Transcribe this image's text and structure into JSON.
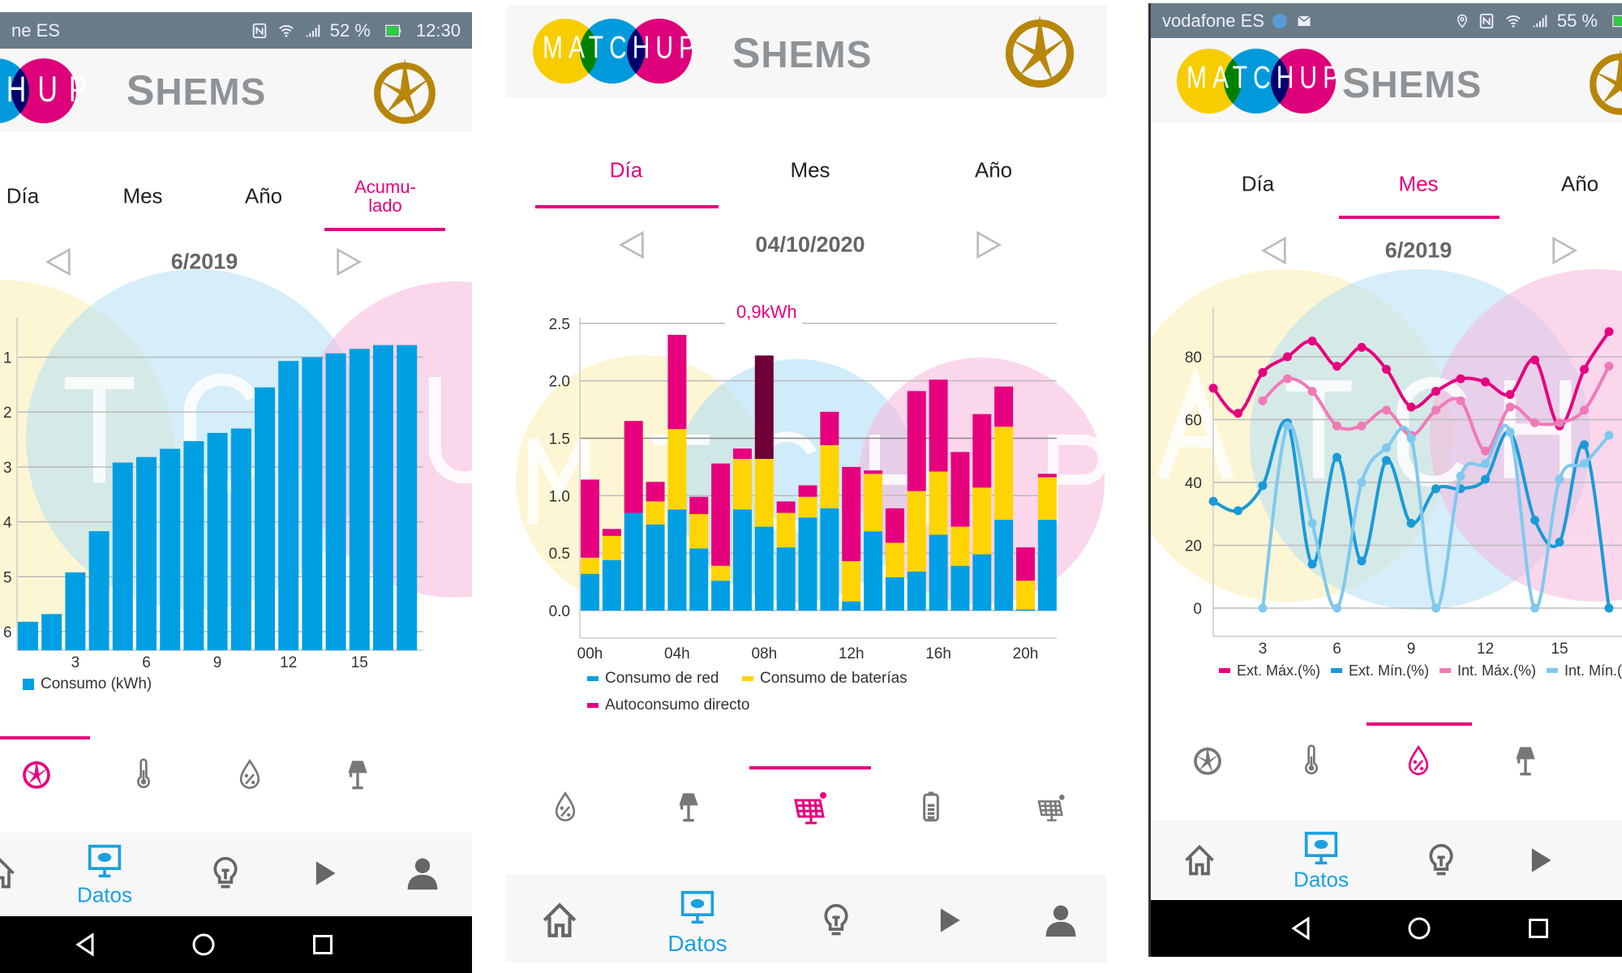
{
  "colors": {
    "blue": "#009fe3",
    "yellow": "#ffd400",
    "pink": "#e6007e",
    "dark": "#6d0036",
    "light_pink": "#f07ab8",
    "light_blue": "#7fc9ee",
    "accent_nav": "#1ba0e0"
  },
  "app": {
    "title": "SHEMS",
    "logo_text": "MATCHUP"
  },
  "panels": [
    {
      "status": {
        "carrier": "ne ES",
        "battery": "52 %",
        "time": "12:30"
      },
      "tabs": [
        "Día",
        "Mes",
        "Año",
        "Acumu-\nlado"
      ],
      "active_tab": 3,
      "date": "6/2019",
      "watermark": [
        "T",
        "C",
        "U"
      ],
      "categories": [
        "emblem",
        "thermometer",
        "humidity",
        "lamp"
      ],
      "active_category": 0,
      "nav": {
        "items": [
          "home",
          "data",
          "bulb",
          "play",
          "user"
        ],
        "active_label": "Datos"
      }
    },
    {
      "tabs": [
        "Día",
        "Mes",
        "Año"
      ],
      "active_tab": 0,
      "date": "04/10/2020",
      "watermark": [
        "M",
        "T",
        "C",
        "H",
        "P"
      ],
      "tooltip": "0,9kWh",
      "categories": [
        "humidity",
        "lamp",
        "solar",
        "battery",
        "solar-small"
      ],
      "active_category": 2,
      "nav": {
        "items": [
          "home",
          "data",
          "bulb",
          "play",
          "user"
        ],
        "active_label": "Datos"
      }
    },
    {
      "status": {
        "carrier": "vodafone ES",
        "battery": "55 %"
      },
      "tabs": [
        "Día",
        "Mes",
        "Año"
      ],
      "active_tab": 1,
      "date": "6/2019",
      "watermark": [
        "A",
        "T",
        "C",
        "H"
      ],
      "categories": [
        "emblem",
        "thermometer",
        "humidity",
        "lamp"
      ],
      "active_category": 2,
      "nav": {
        "items": [
          "home",
          "data",
          "bulb",
          "play"
        ],
        "active_label": "Datos"
      }
    }
  ],
  "chart_data": [
    {
      "type": "bar",
      "title": "",
      "xlabel": "",
      "ylabel": "",
      "x": [
        1,
        2,
        3,
        4,
        5,
        6,
        7,
        8,
        9,
        10,
        11,
        12,
        13,
        14,
        15,
        16,
        17
      ],
      "xticks": [
        "3",
        "6",
        "9",
        "12",
        "15"
      ],
      "yticks": [
        {
          "label": "6",
          "value": 0.34
        },
        {
          "label": "5",
          "value": 1.34
        },
        {
          "label": "4",
          "value": 2.34
        },
        {
          "label": "3",
          "value": 3.34
        },
        {
          "label": "2",
          "value": 4.34
        },
        {
          "label": "1",
          "value": 5.34
        }
      ],
      "values": [
        0.52,
        0.66,
        1.42,
        2.17,
        3.42,
        3.52,
        3.67,
        3.81,
        3.96,
        4.04,
        4.79,
        5.27,
        5.34,
        5.41,
        5.49,
        5.56,
        5.56
      ],
      "legend": [
        {
          "name": "Consumo (kWh)",
          "color": "#009fe3"
        }
      ],
      "grid": true
    },
    {
      "type": "bar",
      "stacked": true,
      "title": "",
      "ylim": [
        -0.24,
        2.6
      ],
      "categories": [
        "00h",
        "01h",
        "02h",
        "03h",
        "04h",
        "05h",
        "06h",
        "07h",
        "08h",
        "09h",
        "10h",
        "11h",
        "12h",
        "13h",
        "14h",
        "15h",
        "16h",
        "17h",
        "18h",
        "19h",
        "20h",
        "21h"
      ],
      "xticks": [
        "00h",
        "04h",
        "08h",
        "12h",
        "16h",
        "20h"
      ],
      "yticks": [
        "0.0",
        "0.5",
        "1.0",
        "1.5",
        "2.0",
        "2.5"
      ],
      "highlighted_index": 8,
      "annotation": "0,9kWh",
      "series": [
        {
          "name": "Consumo de red",
          "color": "#009fe3",
          "values": [
            0.32,
            0.44,
            0.85,
            0.75,
            0.88,
            0.54,
            0.26,
            0.88,
            0.73,
            0.55,
            0.81,
            0.89,
            0.08,
            0.69,
            0.29,
            0.34,
            0.66,
            0.39,
            0.49,
            0.79,
            0.01,
            0.79
          ]
        },
        {
          "name": "Consumo de baterías",
          "color": "#ffd400",
          "values": [
            0.14,
            0.21,
            0.0,
            0.2,
            0.7,
            0.3,
            0.13,
            0.44,
            0.59,
            0.3,
            0.18,
            0.55,
            0.35,
            0.5,
            0.3,
            0.7,
            0.55,
            0.34,
            0.58,
            0.81,
            0.25,
            0.37
          ]
        },
        {
          "name": "Autoconsumo directo",
          "color": "#e6007e",
          "values": [
            0.68,
            0.06,
            0.8,
            0.17,
            0.82,
            0.15,
            0.89,
            0.09,
            0.9,
            0.1,
            0.1,
            0.29,
            0.82,
            0.03,
            0.3,
            0.87,
            0.8,
            0.65,
            0.64,
            0.35,
            0.29,
            0.03
          ]
        }
      ],
      "grid": true
    },
    {
      "type": "line",
      "title": "",
      "ylim": [
        -9,
        93
      ],
      "x": [
        1,
        2,
        3,
        4,
        5,
        6,
        7,
        8,
        9,
        10,
        11,
        12,
        13,
        14,
        15,
        16,
        17
      ],
      "xticks": [
        "3",
        "6",
        "9",
        "12",
        "15"
      ],
      "yticks": [
        "0",
        "20",
        "40",
        "60",
        "80"
      ],
      "series": [
        {
          "name": "Ext. Máx.(%)",
          "color": "#e6007e",
          "values": [
            70,
            62,
            75,
            80,
            85,
            77,
            83,
            76,
            64,
            69,
            73,
            72,
            68,
            79,
            58,
            76,
            88
          ]
        },
        {
          "name": "Ext. Mín.(%)",
          "color": "#1a9ad8",
          "values": [
            34,
            31,
            39,
            59,
            14,
            48,
            15,
            47,
            27,
            38,
            38,
            41,
            56,
            28,
            21,
            52,
            0
          ]
        },
        {
          "name": "Int. Máx.(%)",
          "color": "#f07ab8",
          "values": [
            null,
            null,
            66,
            73,
            69,
            58,
            58,
            63,
            55,
            63,
            66,
            50,
            64,
            59,
            59,
            63,
            77
          ]
        },
        {
          "name": "Int. Mín.(%)",
          "color": "#7fc9ee",
          "values": [
            null,
            null,
            0,
            58,
            27,
            0,
            40,
            51,
            54,
            0,
            42,
            46,
            56,
            0,
            41,
            46,
            55
          ]
        }
      ],
      "grid": true
    }
  ]
}
